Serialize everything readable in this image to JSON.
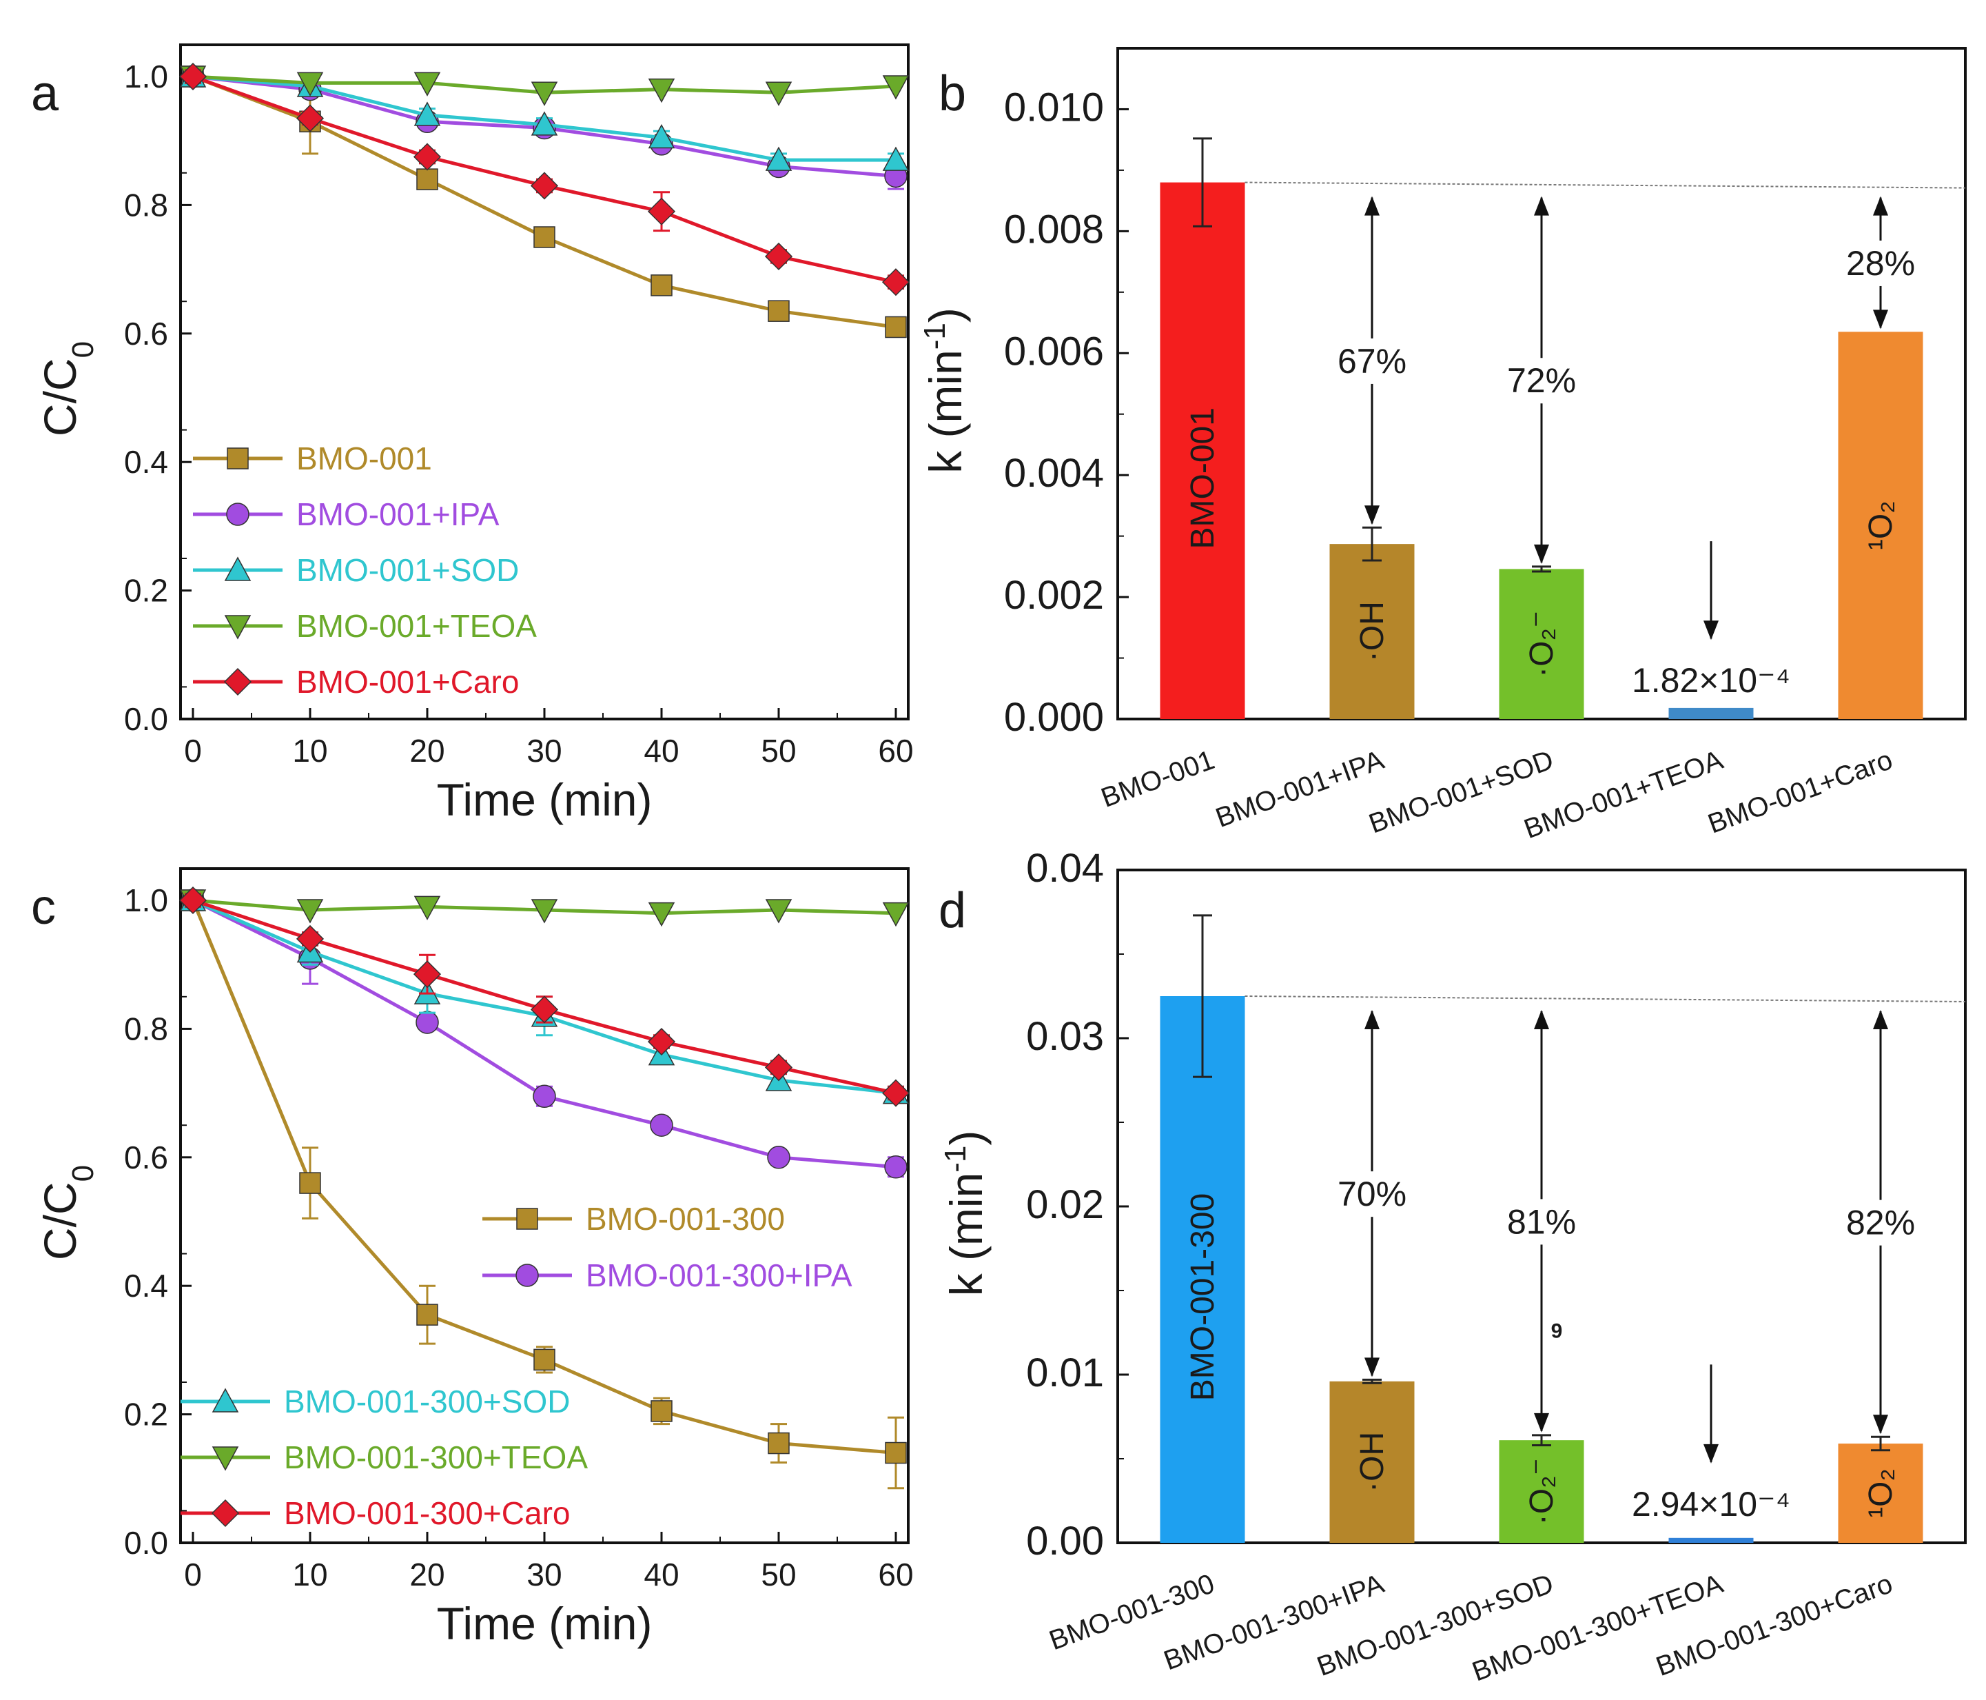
{
  "chart_data": [
    {
      "panel": "a",
      "type": "line",
      "xlabel": "Time (min)",
      "ylabel": "C/C",
      "ylabel_sub": "0",
      "xlim": [
        0,
        60
      ],
      "ylim": [
        0.0,
        1.0
      ],
      "x_ticks": [
        "0",
        "10",
        "20",
        "30",
        "40",
        "50",
        "60"
      ],
      "y_ticks": [
        "0.0",
        "0.2",
        "0.4",
        "0.6",
        "0.8",
        "1.0"
      ],
      "x": [
        0,
        10,
        20,
        30,
        40,
        50,
        60
      ],
      "series": [
        {
          "name": "BMO-001",
          "color": "#b08a2a",
          "marker": "square",
          "values": [
            1.0,
            0.93,
            0.84,
            0.75,
            0.675,
            0.635,
            0.61
          ],
          "errors": [
            0.01,
            0.05,
            0.01,
            0.01,
            0.01,
            0.01,
            0.01
          ]
        },
        {
          "name": "BMO-001+IPA",
          "color": "#a14ce0",
          "marker": "circle",
          "values": [
            1.0,
            0.98,
            0.93,
            0.92,
            0.895,
            0.86,
            0.845
          ],
          "errors": [
            0.01,
            0.01,
            0.01,
            0.01,
            0.01,
            0.01,
            0.02
          ]
        },
        {
          "name": "BMO-001+SOD",
          "color": "#2fc6cf",
          "marker": "triangle-up",
          "values": [
            1.0,
            0.985,
            0.94,
            0.925,
            0.905,
            0.87,
            0.87
          ],
          "errors": [
            0.01,
            0.01,
            0.01,
            0.01,
            0.01,
            0.01,
            0.01
          ]
        },
        {
          "name": "BMO-001+TEOA",
          "color": "#6aaa2a",
          "marker": "triangle-down",
          "values": [
            1.0,
            0.99,
            0.99,
            0.975,
            0.98,
            0.975,
            0.985
          ],
          "errors": [
            0.005,
            0.005,
            0.005,
            0.005,
            0.005,
            0.005,
            0.005
          ]
        },
        {
          "name": "BMO-001+Caro",
          "color": "#e0182a",
          "marker": "diamond",
          "values": [
            1.0,
            0.935,
            0.875,
            0.83,
            0.79,
            0.72,
            0.68
          ],
          "errors": [
            0.01,
            0.01,
            0.01,
            0.01,
            0.03,
            0.01,
            0.01
          ]
        }
      ]
    },
    {
      "panel": "b",
      "type": "bar",
      "ylabel": "k (min",
      "ylabel_sup": "-1",
      "ylabel_end": ")",
      "ylim": [
        0.0,
        0.011
      ],
      "y_ticks": [
        "0.000",
        "0.002",
        "0.004",
        "0.006",
        "0.008",
        "0.010"
      ],
      "categories": [
        "BMO-001",
        "BMO-001+IPA",
        "BMO-001+SOD",
        "BMO-001+TEOA",
        "BMO-001+Caro"
      ],
      "values": [
        0.0088,
        0.00287,
        0.00246,
        0.000182,
        0.00635
      ],
      "errors": [
        0.00072,
        0.00027,
        4e-05,
        0,
        0
      ],
      "colors": [
        "#f41e1e",
        "#b5862a",
        "#74c02a",
        "#3f8ac8",
        "#ef8a30"
      ],
      "bar_labels": [
        "BMO-001",
        "·OH",
        "·O₂⁻",
        "",
        "¹O₂"
      ],
      "percent_labels": [
        "",
        "67%",
        "72%",
        "",
        "28%"
      ],
      "value_note": "1.82×10⁻⁴",
      "reference_level": 0.0088
    },
    {
      "panel": "c",
      "type": "line",
      "xlabel": "Time (min)",
      "ylabel": "C/C",
      "ylabel_sub": "0",
      "xlim": [
        0,
        60
      ],
      "ylim": [
        0.0,
        1.0
      ],
      "x_ticks": [
        "0",
        "10",
        "20",
        "30",
        "40",
        "50",
        "60"
      ],
      "y_ticks": [
        "0.0",
        "0.2",
        "0.4",
        "0.6",
        "0.8",
        "1.0"
      ],
      "x": [
        0,
        10,
        20,
        30,
        40,
        50,
        60
      ],
      "series": [
        {
          "name": "BMO-001-300",
          "color": "#b08a2a",
          "marker": "square",
          "values": [
            1.0,
            0.56,
            0.355,
            0.285,
            0.205,
            0.155,
            0.14
          ],
          "errors": [
            0.01,
            0.055,
            0.045,
            0.02,
            0.02,
            0.03,
            0.055
          ]
        },
        {
          "name": "BMO-001-300+IPA",
          "color": "#a14ce0",
          "marker": "circle",
          "values": [
            1.0,
            0.91,
            0.81,
            0.695,
            0.65,
            0.6,
            0.585
          ],
          "errors": [
            0.01,
            0.04,
            0.01,
            0.015,
            0.01,
            0.01,
            0.015
          ]
        },
        {
          "name": "BMO-001-300+SOD",
          "color": "#2fc6cf",
          "marker": "triangle-up",
          "values": [
            1.0,
            0.92,
            0.855,
            0.82,
            0.76,
            0.72,
            0.7
          ],
          "errors": [
            0.01,
            0.02,
            0.03,
            0.03,
            0.015,
            0.01,
            0.01
          ]
        },
        {
          "name": "BMO-001-300+TEOA",
          "color": "#6aaa2a",
          "marker": "triangle-down",
          "values": [
            1.0,
            0.985,
            0.99,
            0.985,
            0.98,
            0.985,
            0.98
          ],
          "errors": [
            0.005,
            0.005,
            0.005,
            0.005,
            0.005,
            0.005,
            0.005
          ]
        },
        {
          "name": "BMO-001-300+Caro",
          "color": "#e0182a",
          "marker": "diamond",
          "values": [
            1.0,
            0.94,
            0.885,
            0.83,
            0.78,
            0.74,
            0.7
          ],
          "errors": [
            0.01,
            0.01,
            0.03,
            0.02,
            0.01,
            0.01,
            0.01
          ]
        }
      ]
    },
    {
      "panel": "d",
      "type": "bar",
      "ylabel": "k (min",
      "ylabel_sup": "-1",
      "ylabel_end": ")",
      "ylim": [
        0.0,
        0.04
      ],
      "y_ticks": [
        "0.00",
        "0.01",
        "0.02",
        "0.03",
        "0.04"
      ],
      "categories": [
        "BMO-001-300",
        "BMO-001-300+IPA",
        "BMO-001-300+SOD",
        "BMO-001-300+TEOA",
        "BMO-001-300+Caro"
      ],
      "values": [
        0.0325,
        0.0096,
        0.0061,
        0.000294,
        0.0059
      ],
      "errors": [
        0.0048,
        0.0001,
        0.0003,
        0,
        0.0004
      ],
      "colors": [
        "#1ea0f0",
        "#b5862a",
        "#74c02a",
        "#2f80d8",
        "#ef8a30"
      ],
      "bar_labels": [
        "BMO-001-300",
        "·OH",
        "·O₂⁻",
        "",
        "¹O₂"
      ],
      "percent_labels": [
        "",
        "70%",
        "81%",
        "",
        "82%"
      ],
      "value_note": "2.94×10⁻⁴",
      "stray_mark": "9",
      "reference_level": 0.0325
    }
  ],
  "panel_letters": [
    "a",
    "b",
    "c",
    "d"
  ]
}
